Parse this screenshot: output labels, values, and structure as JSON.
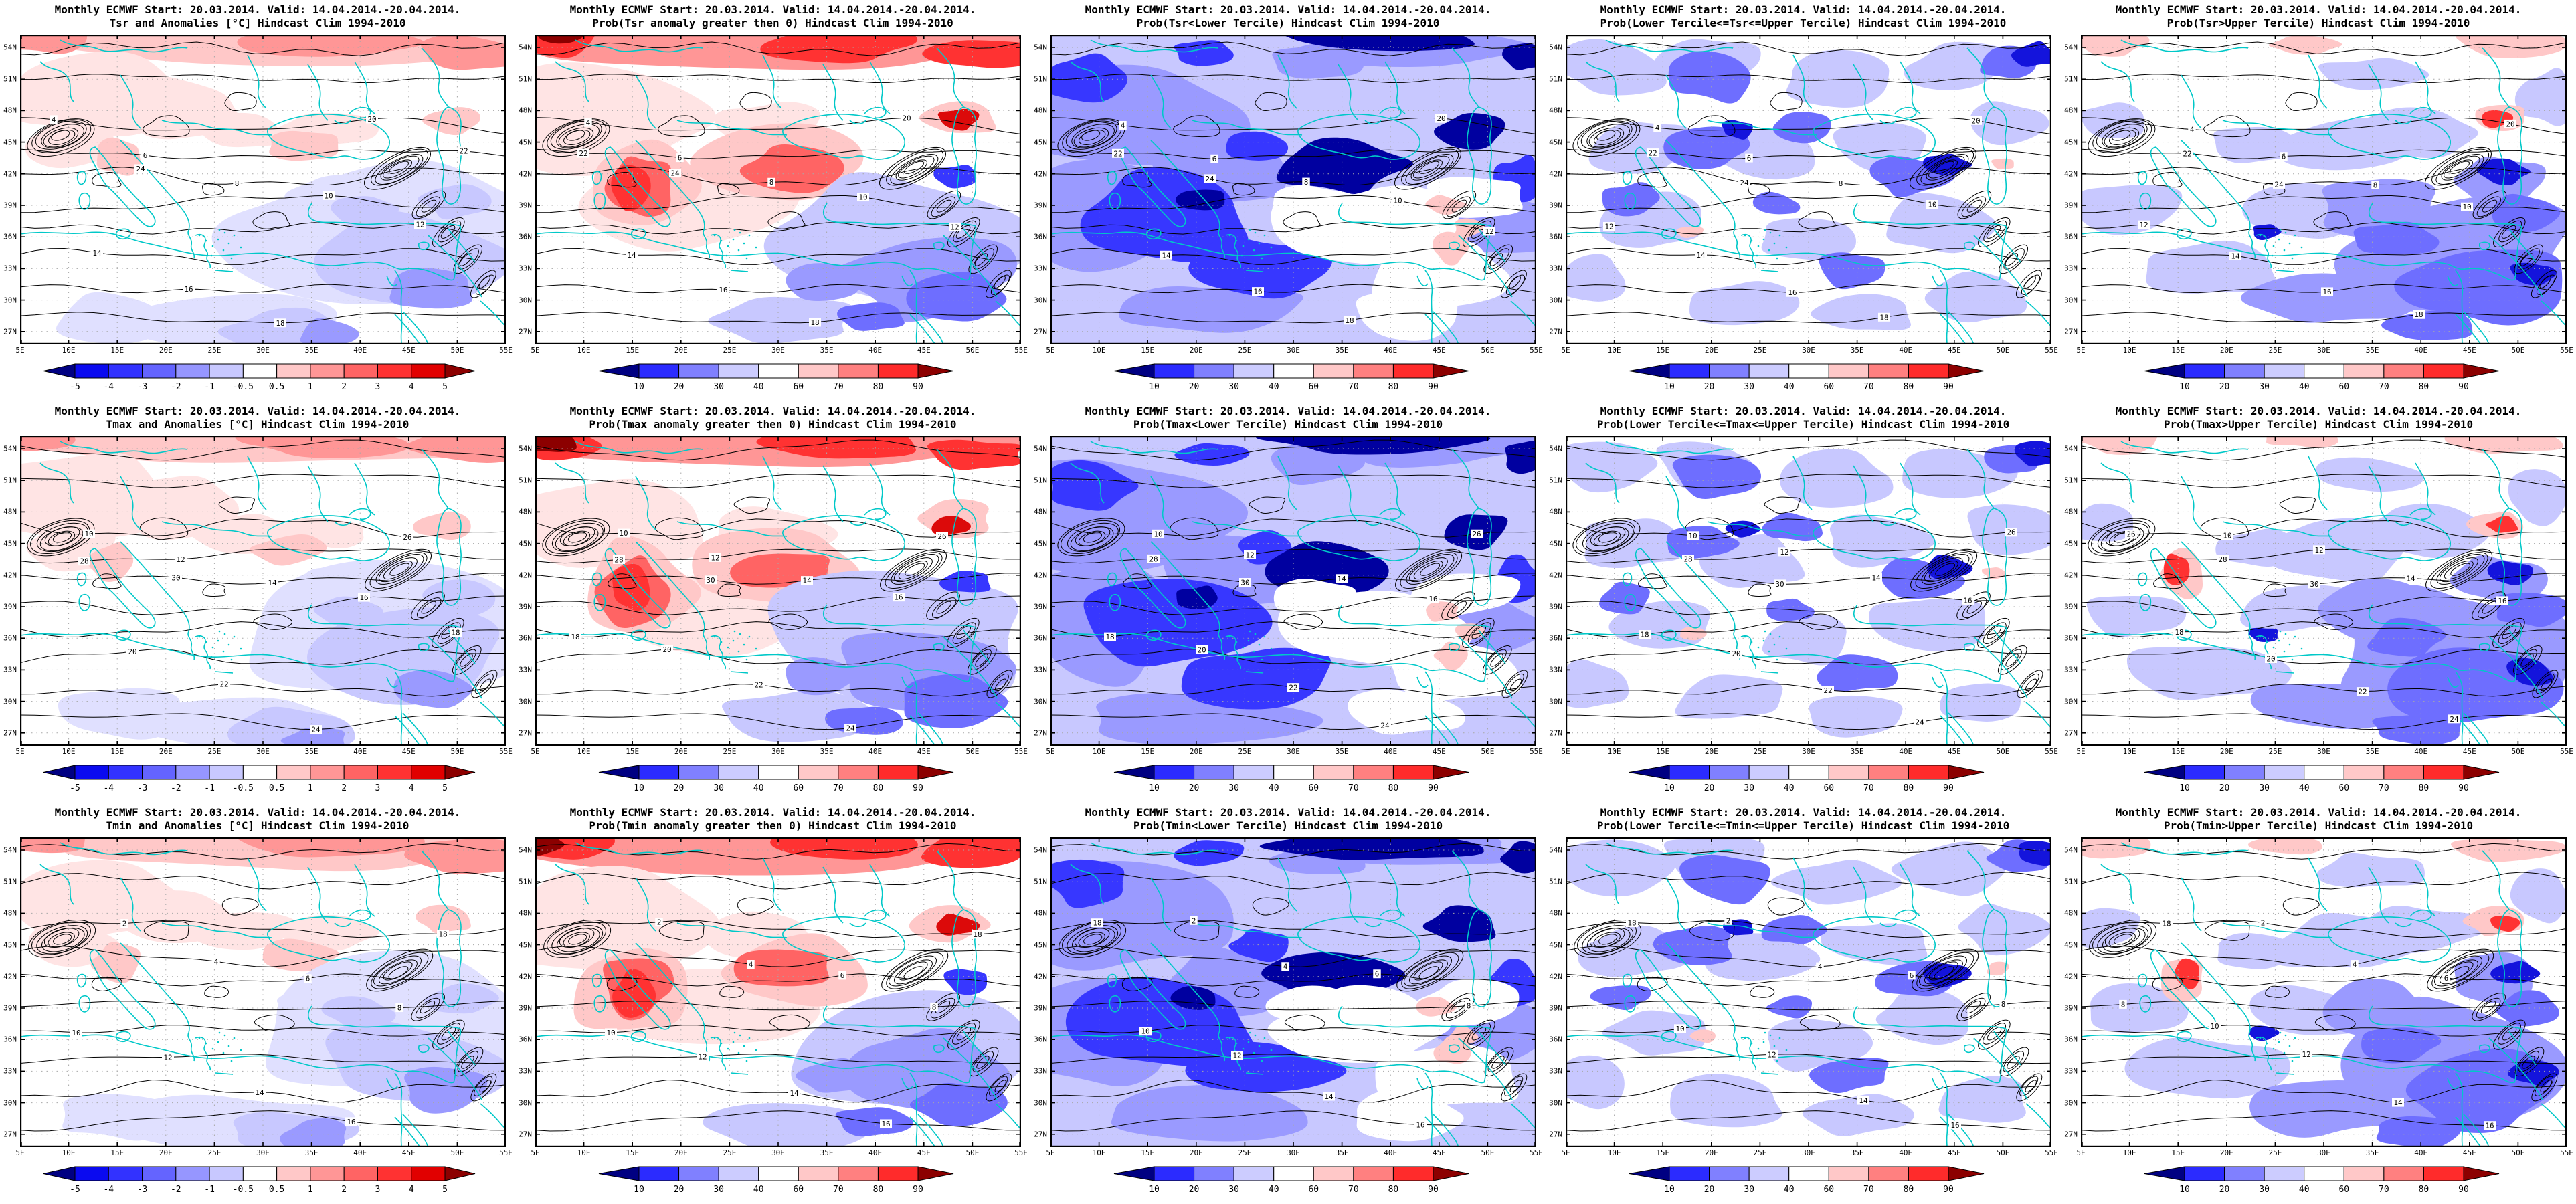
{
  "grid": {
    "rows": 3,
    "cols": 5
  },
  "common": {
    "title_line1": "Monthly ECMWF Start: 20.03.2014. Valid: 14.04.2014.-20.04.2014."
  },
  "panels": [
    {
      "row": 0,
      "col": 0,
      "variable": "Tsr",
      "title_line2": "Tsr and Anomalies [°C] Hindcast Clim 1994-2010",
      "colorbar": "anomaly",
      "shading": "anomaly"
    },
    {
      "row": 0,
      "col": 1,
      "variable": "Tsr",
      "title_line2": "Prob(Tsr anomaly greater then 0) Hindcast Clim 1994-2010",
      "colorbar": "probability",
      "shading": "probGT0"
    },
    {
      "row": 0,
      "col": 2,
      "variable": "Tsr",
      "title_line2": "Prob(Tsr<Lower Tercile) Hindcast Clim 1994-2010",
      "colorbar": "probability",
      "shading": "probLower"
    },
    {
      "row": 0,
      "col": 3,
      "variable": "Tsr",
      "title_line2": "Prob(Lower Tercile<=Tsr<=Upper Tercile) Hindcast Clim 1994-2010",
      "colorbar": "probability",
      "shading": "probMid"
    },
    {
      "row": 0,
      "col": 4,
      "variable": "Tsr",
      "title_line2": "Prob(Tsr>Upper Tercile) Hindcast Clim 1994-2010",
      "colorbar": "probability",
      "shading": "probUpper"
    },
    {
      "row": 1,
      "col": 0,
      "variable": "Tmax",
      "title_line2": "Tmax and Anomalies [°C] Hindcast Clim 1994-2010",
      "colorbar": "anomaly",
      "shading": "anomaly"
    },
    {
      "row": 1,
      "col": 1,
      "variable": "Tmax",
      "title_line2": "Prob(Tmax anomaly greater then 0) Hindcast Clim 1994-2010",
      "colorbar": "probability",
      "shading": "probGT0"
    },
    {
      "row": 1,
      "col": 2,
      "variable": "Tmax",
      "title_line2": "Prob(Tmax<Lower Tercile) Hindcast Clim 1994-2010",
      "colorbar": "probability",
      "shading": "probLower"
    },
    {
      "row": 1,
      "col": 3,
      "variable": "Tmax",
      "title_line2": "Prob(Lower Tercile<=Tmax<=Upper Tercile) Hindcast Clim 1994-2010",
      "colorbar": "probability",
      "shading": "probMid"
    },
    {
      "row": 1,
      "col": 4,
      "variable": "Tmax",
      "title_line2": "Prob(Tmax>Upper Tercile) Hindcast Clim 1994-2010",
      "colorbar": "probability",
      "shading": "probUpper"
    },
    {
      "row": 2,
      "col": 0,
      "variable": "Tmin",
      "title_line2": "Tmin and Anomalies [°C] Hindcast Clim 1994-2010",
      "colorbar": "anomaly",
      "shading": "anomaly"
    },
    {
      "row": 2,
      "col": 1,
      "variable": "Tmin",
      "title_line2": "Prob(Tmin anomaly greater then 0) Hindcast Clim 1994-2010",
      "colorbar": "probability",
      "shading": "probGT0"
    },
    {
      "row": 2,
      "col": 2,
      "variable": "Tmin",
      "title_line2": "Prob(Tmin<Lower Tercile) Hindcast Clim 1994-2010",
      "colorbar": "probability",
      "shading": "probLower"
    },
    {
      "row": 2,
      "col": 3,
      "variable": "Tmin",
      "title_line2": "Prob(Lower Tercile<=Tmin<=Upper Tercile) Hindcast Clim 1994-2010",
      "colorbar": "probability",
      "shading": "probMid"
    },
    {
      "row": 2,
      "col": 4,
      "variable": "Tmin",
      "title_line2": "Prob(Tmin>Upper Tercile) Hindcast Clim 1994-2010",
      "colorbar": "probability",
      "shading": "probUpper"
    }
  ],
  "axes": {
    "lat_labels": [
      "54N",
      "51N",
      "48N",
      "45N",
      "42N",
      "39N",
      "36N",
      "33N",
      "30N",
      "27N"
    ],
    "lon_labels": [
      "5E",
      "10E",
      "15E",
      "20E",
      "25E",
      "30E",
      "35E",
      "40E",
      "45E",
      "50E",
      "55E"
    ]
  },
  "colorbars": {
    "anomaly": {
      "labels": [
        "-5",
        "-4",
        "-3",
        "-2",
        "-1",
        "-0.5",
        "0.5",
        "1",
        "2",
        "3",
        "4",
        "5"
      ],
      "colors": [
        "#0A0AF0",
        "#3232FF",
        "#6464FF",
        "#9696FF",
        "#C8C8FF",
        "#FFFFFF",
        "#FFC8C8",
        "#FF9696",
        "#FF6464",
        "#FF3232",
        "#E10000"
      ],
      "arrow_left": "#000082",
      "arrow_right": "#8C0000"
    },
    "probability": {
      "labels": [
        "10",
        "20",
        "30",
        "40",
        "60",
        "70",
        "80",
        "90"
      ],
      "colors": [
        "#2B2BFF",
        "#8080FF",
        "#CCCCFF",
        "#FFFFFF",
        "#FFC8C8",
        "#FF8080",
        "#FF2B2B"
      ],
      "arrow_left": "#000082",
      "arrow_right": "#8C0000"
    }
  },
  "map_style": {
    "coastline": "#00C8C8",
    "contour": "#000000",
    "gridline": "#A8A8A8",
    "border": "#000000",
    "background": "#FFFFFF",
    "shading_palette": {
      "pink1": "#FFE4E4",
      "pink2": "#FFC8C8",
      "red1": "#FF9696",
      "red2": "#FF6464",
      "red3": "#FF3232",
      "red4": "#DC0A0A",
      "darkred": "#8C0000",
      "blue1": "#E0E0FF",
      "blue2": "#C8C8FF",
      "blue3": "#9A9AFF",
      "blue4": "#6E6EFF",
      "blue5": "#3737FF",
      "blue6": "#1414DC",
      "navy": "#0000A0",
      "white": "#FFFFFF"
    }
  },
  "contour_labels": {
    "row0": [
      "4",
      "6",
      "8",
      "10",
      "12",
      "14",
      "16",
      "18",
      "20",
      "22",
      "24"
    ],
    "row1": [
      "10",
      "12",
      "14",
      "16",
      "18",
      "20",
      "22",
      "24",
      "26",
      "28",
      "30"
    ],
    "row2": [
      "2",
      "4",
      "6",
      "8",
      "10",
      "12",
      "14",
      "16",
      "18"
    ]
  }
}
